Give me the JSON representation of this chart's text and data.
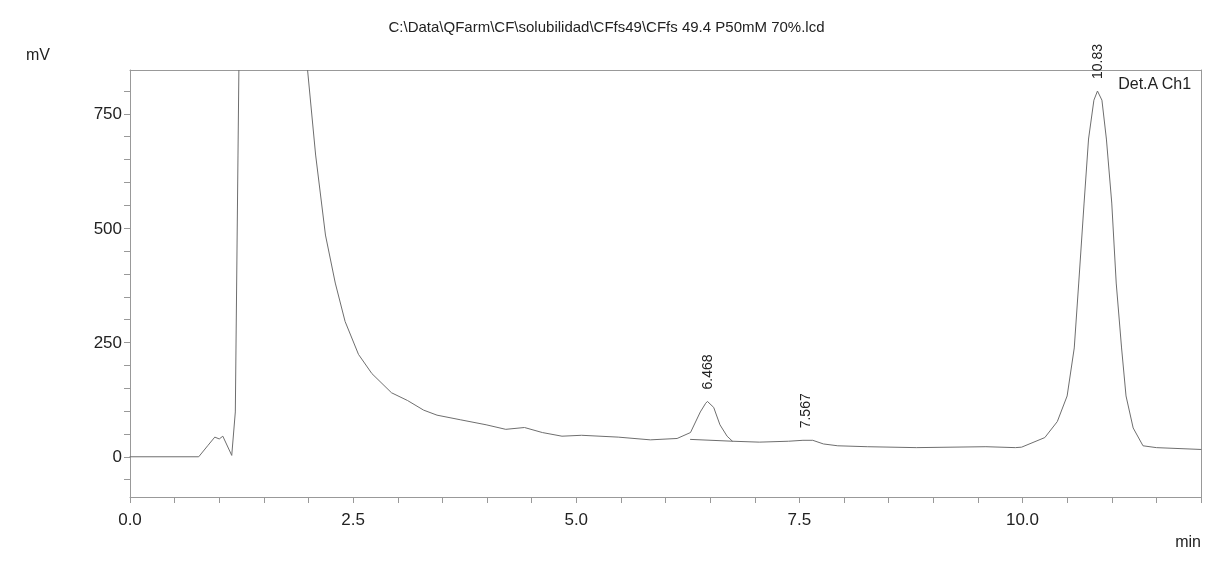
{
  "chart_data": {
    "type": "line",
    "title": "C:\\Data\\QFarm\\CF\\solubilidad\\CFfs49\\CFfs 49.4 P50mM 70%.lcd",
    "xlabel": "min",
    "ylabel": "mV",
    "xlim": [
      0,
      12
    ],
    "ylim": [
      -88,
      846
    ],
    "xticks": [
      {
        "value": 0,
        "label": "0.0"
      },
      {
        "value": 0.5,
        "label": null
      },
      {
        "value": 1,
        "label": null
      },
      {
        "value": 1.5,
        "label": null
      },
      {
        "value": 2,
        "label": null
      },
      {
        "value": 2.5,
        "label": "2.5"
      },
      {
        "value": 3,
        "label": null
      },
      {
        "value": 3.5,
        "label": null
      },
      {
        "value": 4,
        "label": null
      },
      {
        "value": 4.5,
        "label": null
      },
      {
        "value": 5,
        "label": "5.0"
      },
      {
        "value": 5.5,
        "label": null
      },
      {
        "value": 6,
        "label": null
      },
      {
        "value": 6.5,
        "label": null
      },
      {
        "value": 7,
        "label": null
      },
      {
        "value": 7.5,
        "label": "7.5"
      },
      {
        "value": 8,
        "label": null
      },
      {
        "value": 8.5,
        "label": null
      },
      {
        "value": 9,
        "label": null
      },
      {
        "value": 9.5,
        "label": null
      },
      {
        "value": 10,
        "label": "10.0"
      },
      {
        "value": 10.5,
        "label": null
      },
      {
        "value": 11,
        "label": null
      },
      {
        "value": 11.5,
        "label": null
      },
      {
        "value": 12,
        "label": null
      }
    ],
    "yticks": [
      {
        "value": -50,
        "label": null
      },
      0,
      {
        "value": 50,
        "label": null
      },
      {
        "value": 100,
        "label": null
      },
      {
        "value": 150,
        "label": null
      },
      {
        "value": 200,
        "label": null
      },
      250,
      {
        "value": 300,
        "label": null
      },
      {
        "value": 350,
        "label": null
      },
      {
        "value": 400,
        "label": null
      },
      {
        "value": 450,
        "label": null
      },
      500,
      {
        "value": 550,
        "label": null
      },
      {
        "value": 600,
        "label": null
      },
      {
        "value": 650,
        "label": null
      },
      {
        "value": 700,
        "label": null
      },
      750,
      {
        "value": 800,
        "label": null
      }
    ],
    "grid": false,
    "legend": false,
    "marker": "none",
    "line_style": "solid",
    "series": [
      {
        "name": "Det.A Ch1",
        "color": "#6e6e6e",
        "x": [
          0,
          0.77,
          0.87,
          0.95,
          1.0,
          1.04,
          1.14,
          1.18,
          1.21,
          1.22,
          1.6,
          1.99,
          2.08,
          2.19,
          2.3,
          2.41,
          2.56,
          2.71,
          2.93,
          3.11,
          3.29,
          3.44,
          3.7,
          3.99,
          4.21,
          4.42,
          4.62,
          4.84,
          5.06,
          5.47,
          5.83,
          6.13,
          6.28,
          6.39,
          6.45,
          6.47,
          6.54,
          6.61,
          6.69,
          6.75,
          7.05,
          7.38,
          7.54,
          7.65,
          7.77,
          7.93,
          8.26,
          8.81,
          9.59,
          9.92,
          9.99,
          10.25,
          10.39,
          10.5,
          10.58,
          10.63,
          10.69,
          10.74,
          10.8,
          10.84,
          10.89,
          10.94,
          11.0,
          11.05,
          11.11,
          11.16,
          11.24,
          11.35,
          11.5,
          12.0
        ],
        "values": [
          0,
          0,
          24,
          43,
          39,
          45,
          3,
          98,
          660,
          845,
          null,
          845,
          660,
          485,
          380,
          296,
          224,
          182,
          140,
          123,
          102,
          91,
          81,
          70,
          60,
          64,
          53,
          45,
          47,
          43,
          37,
          40,
          53,
          98,
          117,
          121,
          108,
          70,
          45,
          34,
          32,
          34,
          36,
          36,
          28,
          24,
          22,
          20,
          22,
          20,
          21,
          42,
          77,
          133,
          238,
          380,
          555,
          695,
          780,
          800,
          780,
          695,
          555,
          380,
          238,
          133,
          63,
          24,
          20,
          16
        ]
      },
      {
        "color": "#6e6e6e",
        "x": [
          6.28,
          6.75
        ],
        "values": [
          38,
          34
        ]
      }
    ],
    "annotations": [
      {
        "text": "6.468",
        "x": 6.468,
        "y": 121
      },
      {
        "text": "7.567",
        "x": 7.567,
        "y": 36
      },
      {
        "text": "10.83",
        "x": 10.833,
        "y": 800
      }
    ]
  }
}
